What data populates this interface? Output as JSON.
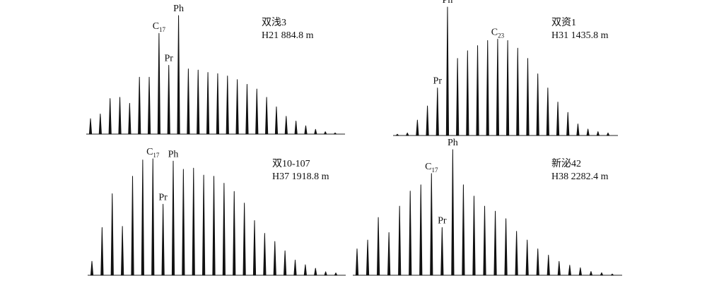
{
  "chart_data": [
    {
      "type": "peaks",
      "title": "双浅3",
      "subtitle": "H21 884.8 m",
      "ylim": [
        0,
        100
      ],
      "categories": [
        null,
        null,
        null,
        null,
        null,
        null,
        null,
        "C17",
        "Pr",
        "Ph",
        null,
        null,
        null,
        null,
        null,
        null,
        null,
        null,
        null,
        null,
        null,
        null,
        null,
        null,
        null,
        null
      ],
      "values": [
        13,
        17,
        30,
        31,
        26,
        48,
        48,
        85,
        58,
        100,
        55,
        54,
        52,
        51,
        49,
        46,
        42,
        38,
        31,
        23,
        15,
        11,
        7,
        4,
        2,
        1
      ]
    },
    {
      "type": "peaks",
      "title": "双资1",
      "subtitle": "H31 1435.8 m",
      "ylim": [
        0,
        100
      ],
      "categories": [
        null,
        null,
        null,
        null,
        "Pr",
        "Ph",
        null,
        null,
        null,
        null,
        "C23",
        null,
        null,
        null,
        null,
        null,
        null,
        null,
        null,
        null,
        null,
        null
      ],
      "values": [
        1,
        2,
        12,
        23,
        37,
        100,
        60,
        66,
        70,
        74,
        75,
        74,
        68,
        60,
        48,
        37,
        26,
        18,
        9,
        5,
        3,
        2
      ]
    },
    {
      "type": "peaks",
      "title": "双10-107",
      "subtitle": "H37 1918.8 m",
      "ylim": [
        0,
        100
      ],
      "categories": [
        null,
        null,
        null,
        null,
        null,
        null,
        "C17",
        "Pr",
        "Ph",
        null,
        null,
        null,
        null,
        null,
        null,
        null,
        null,
        null,
        null,
        null,
        null,
        null,
        null,
        null,
        null
      ],
      "values": [
        12,
        41,
        70,
        42,
        85,
        99,
        100,
        61,
        98,
        91,
        92,
        86,
        85,
        79,
        72,
        62,
        47,
        36,
        29,
        21,
        13,
        9,
        6,
        3,
        2
      ]
    },
    {
      "type": "peaks",
      "title": "新泌42",
      "subtitle": "H38 2282.4 m",
      "ylim": [
        0,
        100
      ],
      "categories": [
        null,
        null,
        null,
        null,
        null,
        null,
        null,
        "C17",
        "Pr",
        "Ph",
        null,
        null,
        null,
        null,
        null,
        null,
        null,
        null,
        null,
        null,
        null,
        null,
        null,
        null,
        null
      ],
      "values": [
        21,
        28,
        46,
        34,
        55,
        67,
        72,
        81,
        38,
        100,
        72,
        63,
        55,
        51,
        45,
        35,
        28,
        21,
        16,
        11,
        8,
        6,
        3,
        2,
        1
      ]
    }
  ]
}
